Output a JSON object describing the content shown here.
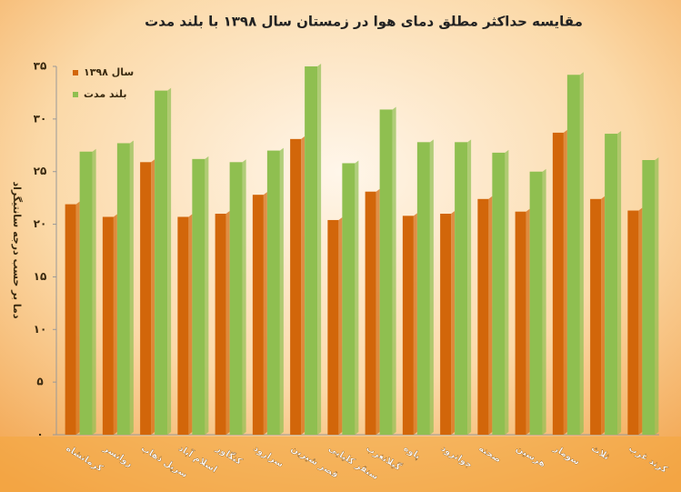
{
  "chart_data": {
    "type": "bar",
    "title": "مقایسه حداکثر مطلق دمای هوا در زمستان سال ۱۳۹۸ با بلند مدت",
    "y_label": "دما بر حسب درجه سانتیگراد",
    "categories": [
      "کرمانشاه",
      "روانسر",
      "سرپل ذهاب",
      "اسلام آباد",
      "کنگاور",
      "سرارود",
      "قصر شیرین",
      "سنقر کلیایی",
      "گیلانغرب",
      "پاوه",
      "جوانرود",
      "صحنه",
      "هرسین",
      "سومار",
      "ثلاث",
      "کرند غرب"
    ],
    "series": [
      {
        "name": "سال ۱۳۹۸",
        "color": "#d2660a",
        "values": [
          21.9,
          20.7,
          25.9,
          20.7,
          21.0,
          22.8,
          28.1,
          20.4,
          23.1,
          20.8,
          21.0,
          22.4,
          21.2,
          28.7,
          22.4,
          21.3
        ]
      },
      {
        "name": "بلند مدت",
        "color": "#8fbf50",
        "values": [
          26.9,
          27.7,
          32.7,
          26.2,
          25.9,
          27.0,
          35.0,
          25.8,
          30.9,
          27.8,
          27.8,
          26.8,
          25.0,
          34.2,
          28.6,
          26.1
        ]
      }
    ],
    "ylim": [
      0,
      35
    ],
    "yticks": [
      {
        "value": 0,
        "label": "۰"
      },
      {
        "value": 5,
        "label": "۵"
      },
      {
        "value": 10,
        "label": "۱۰"
      },
      {
        "value": 15,
        "label": "۱۵"
      },
      {
        "value": 20,
        "label": "۲۰"
      },
      {
        "value": 25,
        "label": "۲۵"
      },
      {
        "value": 30,
        "label": "۳۰"
      },
      {
        "value": 35,
        "label": "۳۵"
      }
    ],
    "legend": "top-left"
  }
}
